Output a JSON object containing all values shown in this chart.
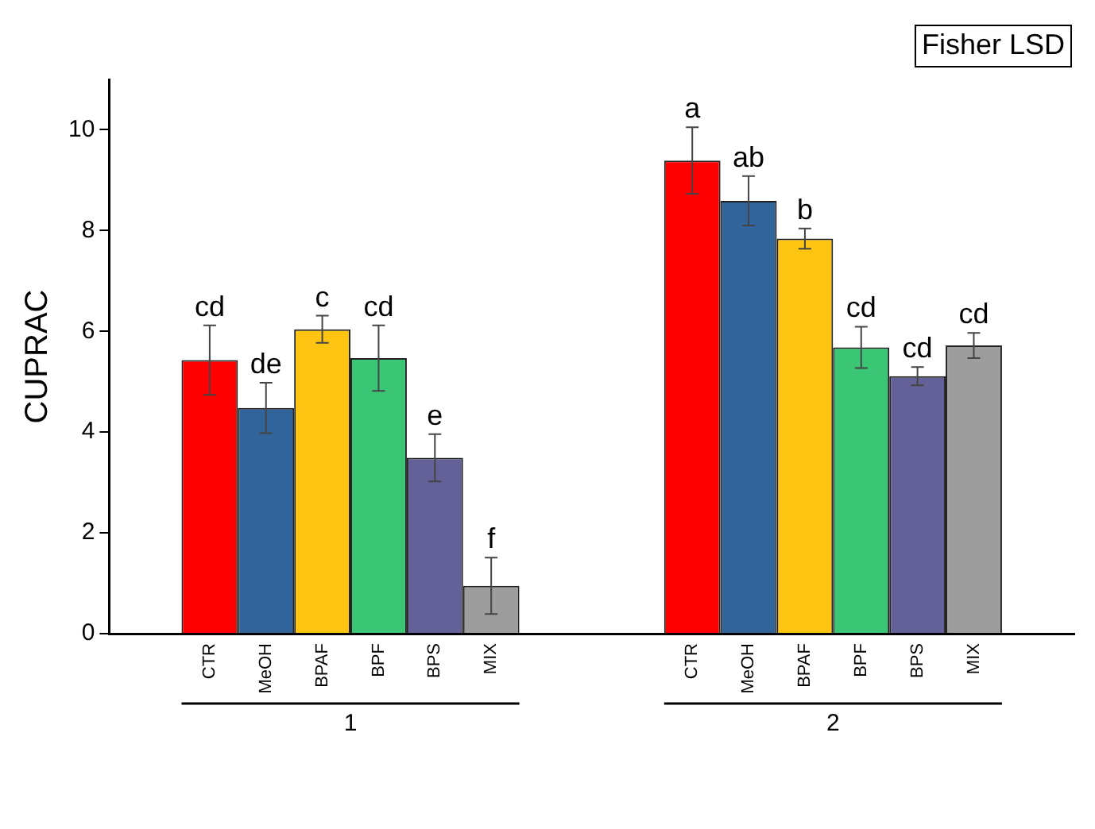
{
  "chart_data": {
    "type": "bar",
    "ylabel": "CUPRAC",
    "categories": [
      "1",
      "2"
    ],
    "ylim": [
      0,
      11
    ],
    "yticks": [
      0,
      2,
      4,
      6,
      8,
      10
    ],
    "grid": false,
    "legend": false,
    "annotations": [
      "Fisher LSD"
    ],
    "series": [
      {
        "name": "CTR",
        "color": "#ff0000",
        "values": [
          5.43,
          9.39
        ],
        "errors": [
          0.69,
          0.66
        ],
        "value_labels": [
          "cd",
          "a"
        ]
      },
      {
        "name": "MeOH",
        "color": "#31649b",
        "values": [
          4.48,
          8.59
        ],
        "errors": [
          0.5,
          0.49
        ],
        "value_labels": [
          "de",
          "ab"
        ]
      },
      {
        "name": "BPAF",
        "color": "#fdc512",
        "values": [
          6.04,
          7.84
        ],
        "errors": [
          0.27,
          0.2
        ],
        "value_labels": [
          "c",
          "b"
        ]
      },
      {
        "name": "BPF",
        "color": "#3ac674",
        "values": [
          5.47,
          5.68
        ],
        "errors": [
          0.65,
          0.41
        ],
        "value_labels": [
          "cd",
          "cd"
        ]
      },
      {
        "name": "BPS",
        "color": "#646198",
        "values": [
          3.49,
          5.11
        ],
        "errors": [
          0.47,
          0.18
        ],
        "value_labels": [
          "e",
          "cd"
        ]
      },
      {
        "name": "MIX",
        "color": "#9d9d9d",
        "values": [
          0.95,
          5.72
        ],
        "errors": [
          0.56,
          0.25
        ],
        "value_labels": [
          "f",
          "cd"
        ]
      }
    ]
  }
}
